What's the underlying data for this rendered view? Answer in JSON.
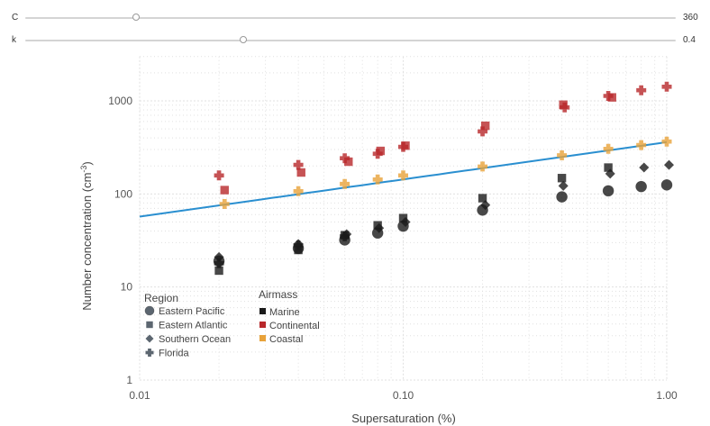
{
  "sliders": [
    {
      "name": "C",
      "value": "360",
      "position": 0.17
    },
    {
      "name": "k",
      "value": "0.4",
      "position": 0.335
    }
  ],
  "colors": {
    "marine": "#1a1a1a",
    "continental": "#b8282b",
    "coastal": "#e8a23a",
    "fit_line": "#2a8fd0",
    "legend_symbol": "#5c6670",
    "gridline": "#e0e0e0"
  },
  "chart_data": {
    "type": "scatter",
    "xlabel": "Supersaturation (%)",
    "ylabel": "Number concentration (cm",
    "ylabel_sup": "-3",
    "ylabel_end": ")",
    "x_scale": "log",
    "y_scale": "log",
    "xlim": [
      0.01,
      1.0
    ],
    "ylim": [
      1,
      3000
    ],
    "x_ticks": [
      0.01,
      0.1,
      1.0
    ],
    "x_tick_labels": [
      "0.01",
      "0.10",
      "1.00"
    ],
    "y_ticks": [
      1,
      10,
      100,
      1000
    ],
    "y_tick_labels": [
      "1",
      "10",
      "100",
      "1000"
    ],
    "grid": "minor and major dotted",
    "fit_line": {
      "formula": "C * s^k",
      "C": 360,
      "k": 0.4
    },
    "legend": {
      "placement": "bottom-left",
      "region_title": "Region",
      "region_entries": [
        {
          "label": "Eastern Pacific",
          "marker": "circle"
        },
        {
          "label": "Eastern Atlantic",
          "marker": "square"
        },
        {
          "label": "Southern Ocean",
          "marker": "diamond"
        },
        {
          "label": "Florida",
          "marker": "cross"
        }
      ],
      "airmass_title": "Airmass",
      "airmass_entries": [
        {
          "label": "Marine",
          "key": "marine"
        },
        {
          "label": "Continental",
          "key": "continental"
        },
        {
          "label": "Coastal",
          "key": "coastal"
        }
      ]
    },
    "series": [
      {
        "region": "Eastern Pacific",
        "airmass": "marine",
        "marker": "circle",
        "x": [
          0.02,
          0.04,
          0.06,
          0.08,
          0.1,
          0.2,
          0.4,
          0.6,
          0.8,
          1.0
        ],
        "y": [
          19,
          26,
          32,
          38,
          45,
          67,
          93,
          108,
          120,
          125
        ]
      },
      {
        "region": "Eastern Atlantic",
        "airmass": "marine",
        "marker": "square",
        "x": [
          0.02,
          0.04,
          0.06,
          0.08,
          0.1,
          0.2,
          0.4,
          0.6
        ],
        "y": [
          15,
          25,
          36,
          46,
          55,
          90,
          148,
          192
        ]
      },
      {
        "region": "Southern Ocean",
        "airmass": "marine",
        "marker": "diamond",
        "x": [
          0.02,
          0.04,
          0.061,
          0.081,
          0.102,
          0.205,
          0.405,
          0.61,
          0.82,
          1.02
        ],
        "y": [
          21,
          29,
          37,
          43,
          50,
          76,
          122,
          165,
          192,
          205
        ]
      },
      {
        "region": "Florida",
        "airmass": "marine",
        "marker": "cross",
        "x": [
          0.02,
          0.04,
          0.06
        ],
        "y": [
          18,
          28,
          35
        ]
      },
      {
        "region": "Eastern Atlantic",
        "airmass": "continental",
        "marker": "square",
        "x": [
          0.021,
          0.041,
          0.062,
          0.082,
          0.102,
          0.205,
          0.405,
          0.62
        ],
        "y": [
          110,
          170,
          222,
          290,
          330,
          540,
          910,
          1090
        ]
      },
      {
        "region": "Florida",
        "airmass": "continental",
        "marker": "cross",
        "x": [
          0.02,
          0.04,
          0.06,
          0.08,
          0.1,
          0.2,
          0.41,
          0.6,
          0.8,
          1.0
        ],
        "y": [
          158,
          205,
          242,
          270,
          320,
          470,
          850,
          1130,
          1300,
          1420
        ]
      },
      {
        "region": "Florida",
        "airmass": "coastal",
        "marker": "cross",
        "x": [
          0.021,
          0.04,
          0.06,
          0.08,
          0.1,
          0.2,
          0.4,
          0.6,
          0.8,
          1.0
        ],
        "y": [
          78,
          107,
          128,
          143,
          158,
          197,
          260,
          305,
          335,
          365
        ]
      }
    ]
  }
}
